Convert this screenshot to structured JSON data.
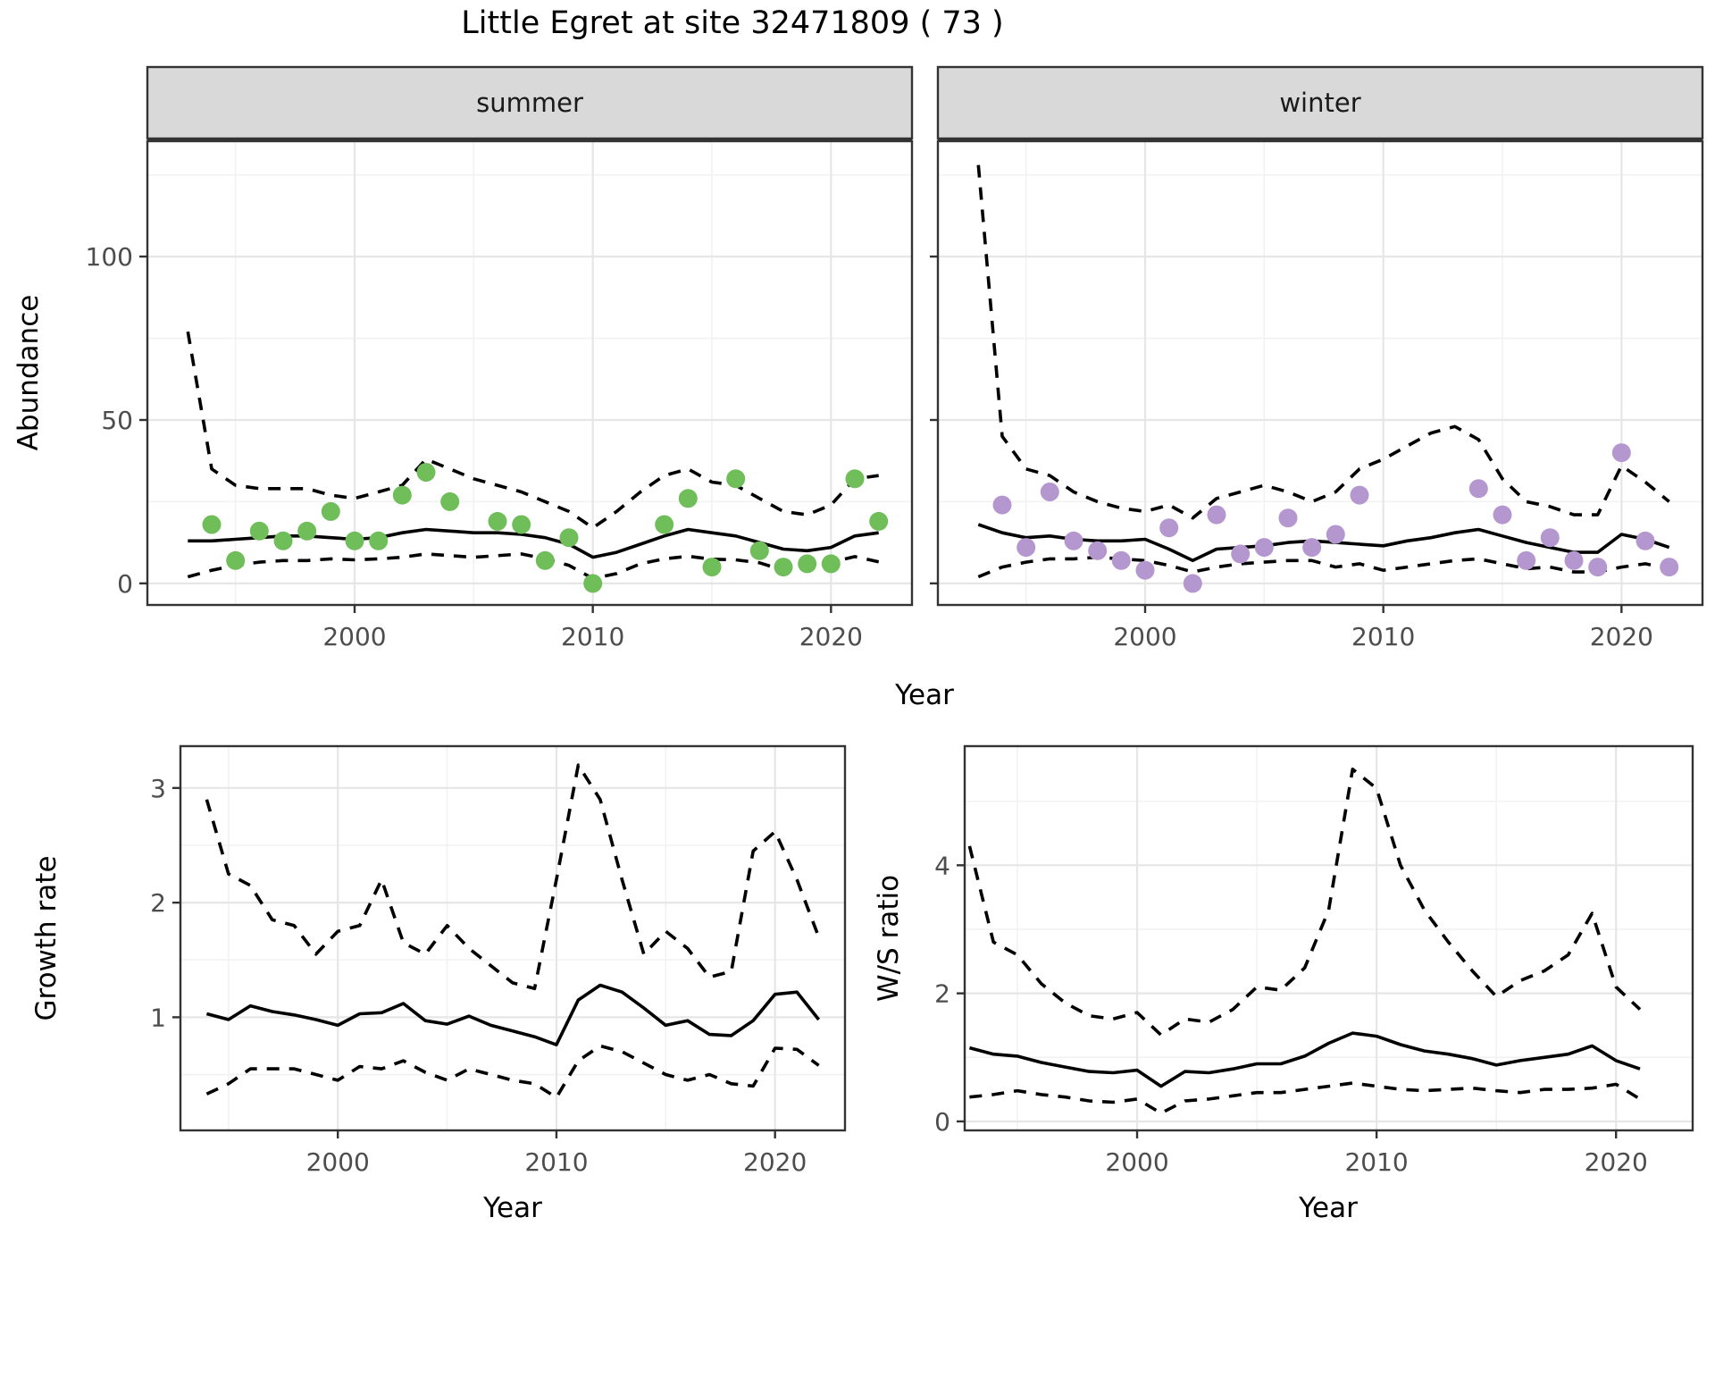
{
  "title": "Little Egret at site 32471809 ( 73 )",
  "axes": {
    "abundance_label": "Abundance",
    "year_label": "Year",
    "growth_label": "Growth rate",
    "ws_label": "W/S ratio"
  },
  "colors": {
    "summer_point": "#6FBE59",
    "winter_point": "#B497CF",
    "line": "#000000",
    "grid_major": "#E6E6E6",
    "grid_minor": "#F2F2F2",
    "panel_border": "#333333",
    "strip_bg": "#D9D9D9",
    "strip_text": "#1A1A1A",
    "tick_text": "#4D4D4D",
    "background": "#FFFFFF"
  },
  "chart_data": [
    {
      "id": "abundance-summer",
      "type": "line",
      "facet_label": "summer",
      "ylabel": "Abundance",
      "xlim": [
        1991.3,
        2023.4
      ],
      "ylim": [
        -6.6,
        135.3
      ],
      "xticks": {
        "major": [
          2000,
          2010,
          2020
        ],
        "minor": [
          1995,
          2005,
          2015
        ],
        "labels": [
          "2000",
          "2010",
          "2020"
        ]
      },
      "yticks": {
        "major": [
          0,
          50,
          100
        ],
        "minor": [
          25,
          75,
          125
        ],
        "labels": [
          "0",
          "50",
          "100"
        ]
      },
      "grid": true,
      "legend": "none",
      "x": [
        1993,
        1994,
        1995,
        1996,
        1997,
        1998,
        1999,
        2000,
        2001,
        2002,
        2003,
        2004,
        2005,
        2006,
        2007,
        2008,
        2009,
        2010,
        2011,
        2012,
        2013,
        2014,
        2015,
        2016,
        2017,
        2018,
        2019,
        2020,
        2021,
        2022
      ],
      "series": [
        {
          "name": "fit",
          "style": "solid",
          "values": [
            13,
            13,
            13.5,
            14,
            14.5,
            14.5,
            14,
            13.5,
            14,
            15.5,
            16.5,
            16,
            15.5,
            15.5,
            15,
            14,
            12,
            8,
            9.5,
            12,
            14.5,
            16.5,
            15.5,
            14.5,
            12.5,
            10.5,
            10,
            11,
            14.5,
            15.5
          ]
        },
        {
          "name": "upper_ci",
          "style": "dashed",
          "values": [
            77,
            35,
            30,
            29,
            29,
            29,
            27,
            26,
            28,
            30,
            38,
            35,
            32,
            30,
            28,
            25,
            22,
            17,
            22,
            28,
            33,
            35,
            31,
            30,
            26,
            22,
            21,
            24,
            32,
            33
          ]
        },
        {
          "name": "lower_ci",
          "style": "dashed",
          "values": [
            2,
            4,
            5.5,
            6.5,
            7,
            7,
            7.5,
            7.2,
            7.5,
            8,
            9,
            8.5,
            8,
            8.5,
            9,
            7.5,
            5.5,
            1.5,
            3,
            6,
            7.5,
            8.3,
            7.4,
            7.2,
            6.3,
            4,
            4.7,
            6.5,
            8.2,
            6.6
          ]
        }
      ],
      "points": {
        "name": "observed_counts",
        "color_key": "summer_point",
        "years": [
          1994,
          1995,
          1996,
          1997,
          1998,
          1999,
          2000,
          2001,
          2002,
          2003,
          2004,
          2006,
          2007,
          2008,
          2009,
          2010,
          2013,
          2014,
          2015,
          2016,
          2017,
          2018,
          2019,
          2020,
          2021,
          2022
        ],
        "values": [
          18,
          7,
          16,
          13,
          16,
          22,
          13,
          13,
          27,
          34,
          25,
          19,
          18,
          7,
          14,
          0,
          18,
          26,
          5,
          32,
          10,
          5,
          6,
          6,
          32,
          19
        ]
      }
    },
    {
      "id": "abundance-winter",
      "type": "line",
      "facet_label": "winter",
      "ylabel": "Abundance",
      "xlim": [
        1991.3,
        2023.4
      ],
      "ylim": [
        -6.6,
        135.3
      ],
      "xticks": {
        "major": [
          2000,
          2010,
          2020
        ],
        "minor": [
          1995,
          2005,
          2015
        ],
        "labels": [
          "2000",
          "2010",
          "2020"
        ]
      },
      "yticks": {
        "major": [
          0,
          50,
          100
        ],
        "minor": [
          25,
          75,
          125
        ],
        "labels": []
      },
      "grid": true,
      "legend": "none",
      "x": [
        1993,
        1994,
        1995,
        1996,
        1997,
        1998,
        1999,
        2000,
        2001,
        2002,
        2003,
        2004,
        2005,
        2006,
        2007,
        2008,
        2009,
        2010,
        2011,
        2012,
        2013,
        2014,
        2015,
        2016,
        2017,
        2018,
        2019,
        2020,
        2021,
        2022
      ],
      "series": [
        {
          "name": "fit",
          "style": "solid",
          "values": [
            18,
            15.5,
            14,
            14.5,
            13.5,
            13,
            13,
            13.5,
            10.5,
            7,
            10.5,
            11,
            11.5,
            12.5,
            13,
            12.5,
            12,
            11.5,
            13,
            14,
            15.5,
            16.5,
            14.5,
            12.5,
            11,
            9.5,
            9.5,
            15,
            13.5,
            11
          ]
        },
        {
          "name": "upper_ci",
          "style": "dashed",
          "values": [
            128,
            45,
            35,
            33,
            28,
            25,
            23,
            22,
            24,
            20,
            26,
            28,
            30,
            28,
            25,
            28,
            35,
            38,
            42,
            46,
            48,
            44,
            32,
            25,
            23.5,
            21,
            21,
            36,
            31,
            25
          ]
        },
        {
          "name": "lower_ci",
          "style": "dashed",
          "values": [
            2,
            5,
            6.5,
            7.5,
            7.5,
            8,
            7.5,
            7,
            5.5,
            3.5,
            5,
            6,
            6.5,
            7,
            7,
            5,
            6,
            4,
            5,
            6,
            7,
            7.5,
            6,
            4.5,
            5,
            3.5,
            3.5,
            5,
            6,
            4.5
          ]
        }
      ],
      "points": {
        "name": "observed_counts",
        "color_key": "winter_point",
        "years": [
          1994,
          1995,
          1996,
          1997,
          1998,
          1999,
          2000,
          2001,
          2002,
          2003,
          2004,
          2005,
          2006,
          2007,
          2008,
          2009,
          2014,
          2015,
          2016,
          2017,
          2018,
          2019,
          2020,
          2021,
          2022
        ],
        "values": [
          24,
          11,
          28,
          13,
          10,
          7,
          4,
          17,
          0,
          21,
          9,
          11,
          20,
          11,
          15,
          27,
          29,
          21,
          7,
          14,
          7,
          5,
          40,
          13,
          5
        ]
      }
    },
    {
      "id": "growth-rate",
      "type": "line",
      "facet_label": "",
      "ylabel": "Growth rate",
      "xlabel": "Year",
      "xlim": [
        1992.8,
        2023.2
      ],
      "ylim": [
        0.013,
        3.365
      ],
      "xticks": {
        "major": [
          2000,
          2010,
          2020
        ],
        "minor": [
          1995,
          2005,
          2015
        ],
        "labels": [
          "2000",
          "2010",
          "2020"
        ]
      },
      "yticks": {
        "major": [
          1,
          2,
          3
        ],
        "minor": [
          0.5,
          1.5,
          2.5
        ],
        "labels": [
          "1",
          "2",
          "3"
        ]
      },
      "grid": true,
      "legend": "none",
      "x": [
        1994,
        1995,
        1996,
        1997,
        1998,
        1999,
        2000,
        2001,
        2002,
        2003,
        2004,
        2005,
        2006,
        2007,
        2008,
        2009,
        2010,
        2011,
        2012,
        2013,
        2014,
        2015,
        2016,
        2017,
        2018,
        2019,
        2020,
        2021,
        2022
      ],
      "series": [
        {
          "name": "fit",
          "style": "solid",
          "values": [
            1.03,
            0.98,
            1.1,
            1.05,
            1.02,
            0.98,
            0.93,
            1.03,
            1.04,
            1.12,
            0.97,
            0.94,
            1.01,
            0.93,
            0.88,
            0.83,
            0.76,
            1.15,
            1.28,
            1.22,
            1.08,
            0.93,
            0.97,
            0.85,
            0.84,
            0.97,
            1.2,
            1.22,
            0.98
          ]
        },
        {
          "name": "upper_ci",
          "style": "dashed",
          "values": [
            2.9,
            2.25,
            2.15,
            1.85,
            1.8,
            1.55,
            1.75,
            1.8,
            2.2,
            1.65,
            1.55,
            1.8,
            1.6,
            1.45,
            1.3,
            1.25,
            2.2,
            3.2,
            2.9,
            2.2,
            1.55,
            1.75,
            1.6,
            1.35,
            1.4,
            2.45,
            2.62,
            2.2,
            1.7
          ]
        },
        {
          "name": "lower_ci",
          "style": "dashed",
          "values": [
            0.33,
            0.42,
            0.55,
            0.55,
            0.55,
            0.5,
            0.45,
            0.57,
            0.55,
            0.62,
            0.52,
            0.45,
            0.55,
            0.5,
            0.45,
            0.42,
            0.3,
            0.62,
            0.75,
            0.7,
            0.6,
            0.5,
            0.45,
            0.5,
            0.42,
            0.4,
            0.73,
            0.72,
            0.58
          ]
        }
      ]
    },
    {
      "id": "ws-ratio",
      "type": "line",
      "facet_label": "",
      "ylabel": "W/S ratio",
      "xlabel": "Year",
      "xlim": [
        1992.8,
        2023.2
      ],
      "ylim": [
        -0.14,
        5.86
      ],
      "xticks": {
        "major": [
          2000,
          2010,
          2020
        ],
        "minor": [
          1995,
          2005,
          2015
        ],
        "labels": [
          "2000",
          "2010",
          "2020"
        ]
      },
      "yticks": {
        "major": [
          0,
          2,
          4
        ],
        "minor": [
          1,
          3,
          5
        ],
        "labels": [
          "0",
          "2",
          "4"
        ]
      },
      "grid": true,
      "legend": "none",
      "x": [
        1993,
        1994,
        1995,
        1996,
        1997,
        1998,
        1999,
        2000,
        2001,
        2002,
        2003,
        2004,
        2005,
        2006,
        2007,
        2008,
        2009,
        2010,
        2011,
        2012,
        2013,
        2014,
        2015,
        2016,
        2017,
        2018,
        2019,
        2020,
        2021
      ],
      "series": [
        {
          "name": "fit",
          "style": "solid",
          "values": [
            1.15,
            1.05,
            1.02,
            0.92,
            0.85,
            0.78,
            0.76,
            0.8,
            0.55,
            0.78,
            0.76,
            0.82,
            0.9,
            0.9,
            1.02,
            1.22,
            1.38,
            1.33,
            1.2,
            1.1,
            1.05,
            0.98,
            0.88,
            0.95,
            1.0,
            1.05,
            1.18,
            0.95,
            0.82
          ]
        },
        {
          "name": "upper_ci",
          "style": "dashed",
          "values": [
            4.3,
            2.8,
            2.6,
            2.15,
            1.85,
            1.65,
            1.6,
            1.7,
            1.35,
            1.6,
            1.55,
            1.75,
            2.1,
            2.05,
            2.4,
            3.3,
            5.5,
            5.2,
            4.0,
            3.3,
            2.8,
            2.35,
            1.95,
            2.2,
            2.35,
            2.6,
            3.25,
            2.1,
            1.75
          ]
        },
        {
          "name": "lower_ci",
          "style": "dashed",
          "values": [
            0.38,
            0.42,
            0.48,
            0.42,
            0.38,
            0.32,
            0.3,
            0.35,
            0.13,
            0.32,
            0.35,
            0.4,
            0.45,
            0.45,
            0.5,
            0.55,
            0.6,
            0.55,
            0.5,
            0.48,
            0.5,
            0.52,
            0.48,
            0.45,
            0.5,
            0.5,
            0.52,
            0.58,
            0.35
          ]
        }
      ]
    }
  ]
}
